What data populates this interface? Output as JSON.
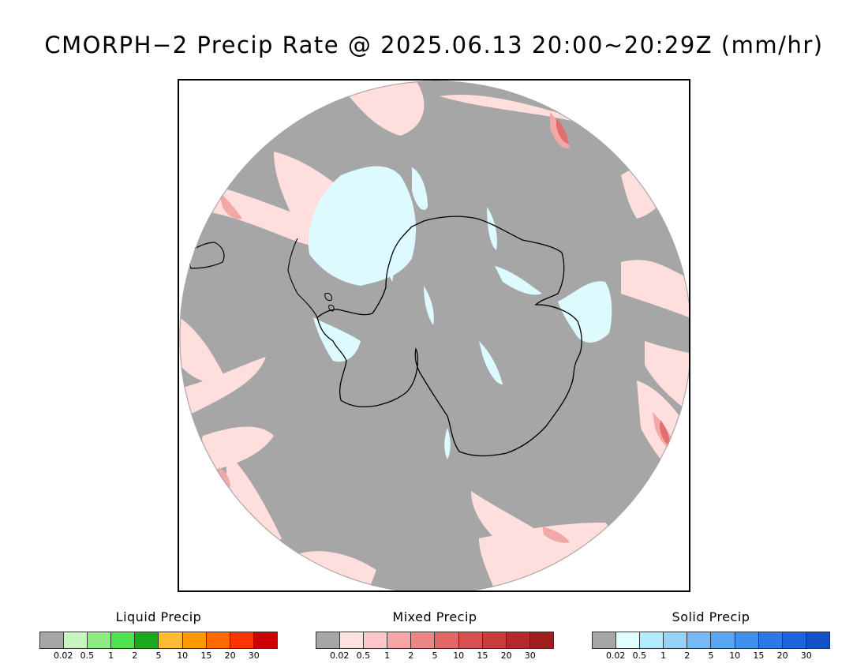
{
  "title": "CMORPH−2 Precip Rate @ 2025.06.13 20:00~20:29Z (mm/hr)",
  "legends": [
    {
      "title": "Liquid Precip",
      "ticks": [
        "0.02",
        "0.5",
        "1",
        "2",
        "5",
        "10",
        "15",
        "20",
        "30"
      ],
      "colors": [
        "#a6a6a6",
        "#c8f5c0",
        "#90ea84",
        "#4fe14f",
        "#1ea81e",
        "#ffbb33",
        "#ff9900",
        "#ff6a00",
        "#ff3300",
        "#cc0000"
      ]
    },
    {
      "title": "Mixed Precip",
      "ticks": [
        "0.02",
        "0.5",
        "1",
        "2",
        "5",
        "10",
        "15",
        "20",
        "30"
      ],
      "colors": [
        "#a6a6a6",
        "#ffe1e1",
        "#ffc8c8",
        "#f5a5a5",
        "#ec8585",
        "#e26868",
        "#d75050",
        "#c83b3b",
        "#b42828",
        "#a01e1e"
      ]
    },
    {
      "title": "Solid Precip",
      "ticks": [
        "0.02",
        "0.5",
        "1",
        "2",
        "5",
        "10",
        "15",
        "20",
        "30"
      ],
      "colors": [
        "#a6a6a6",
        "#e0ffff",
        "#b4ecff",
        "#96d2fa",
        "#78b9f5",
        "#5aa5f0",
        "#4191ec",
        "#2d78e6",
        "#1e64dc",
        "#1450c8"
      ]
    }
  ],
  "colors": {
    "no_precip": "#a6a6a6",
    "mixed_light": "#ffdede",
    "mixed_moderate": "#f3a8a8",
    "mixed_heavy": "#e07070",
    "solid_light": "#dcfaff",
    "liquid_light": "#c8f5c0",
    "coastline": "#000000"
  }
}
